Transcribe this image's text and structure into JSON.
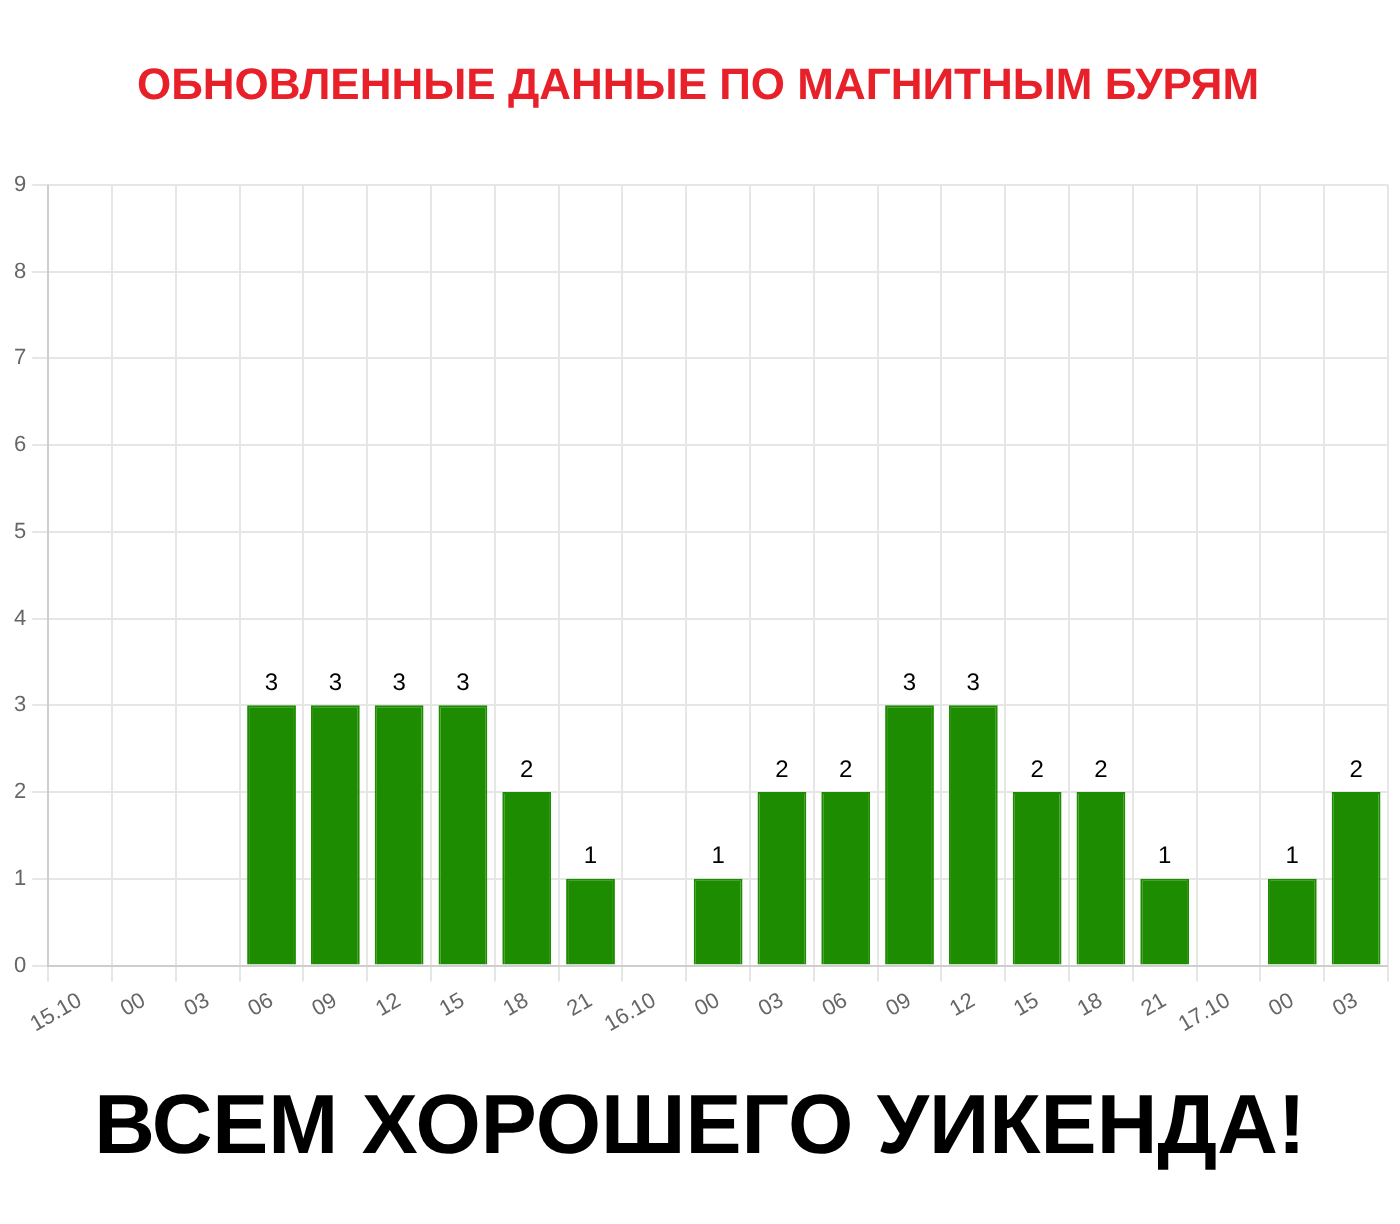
{
  "chart_data": {
    "type": "bar",
    "title": "ОБНОВЛЕННЫЕ ДАННЫЕ ПО МАГНИТНЫМ БУРЯМ",
    "categories": [
      "15.10",
      "00",
      "03",
      "06",
      "09",
      "12",
      "15",
      "18",
      "21",
      "16.10",
      "00",
      "03",
      "06",
      "09",
      "12",
      "15",
      "18",
      "21",
      "17.10",
      "00",
      "03"
    ],
    "values": [
      0,
      0,
      0,
      3,
      3,
      3,
      3,
      2,
      1,
      0,
      1,
      2,
      2,
      3,
      3,
      2,
      2,
      1,
      0,
      1,
      2
    ],
    "value_labels": [
      null,
      null,
      null,
      "3",
      "3",
      "3",
      "3",
      "2",
      "1",
      null,
      "1",
      "2",
      "2",
      "3",
      "3",
      "2",
      "2",
      "1",
      null,
      "1",
      "2"
    ],
    "color": "#1e8c00",
    "ylim": [
      0,
      9
    ],
    "yticks": [
      0,
      1,
      2,
      3,
      4,
      5,
      6,
      7,
      8,
      9
    ],
    "grid": true,
    "legend": false,
    "annotations": [
      "ВСЕМ ХОРОШЕГО УИКЕНДА!"
    ]
  }
}
